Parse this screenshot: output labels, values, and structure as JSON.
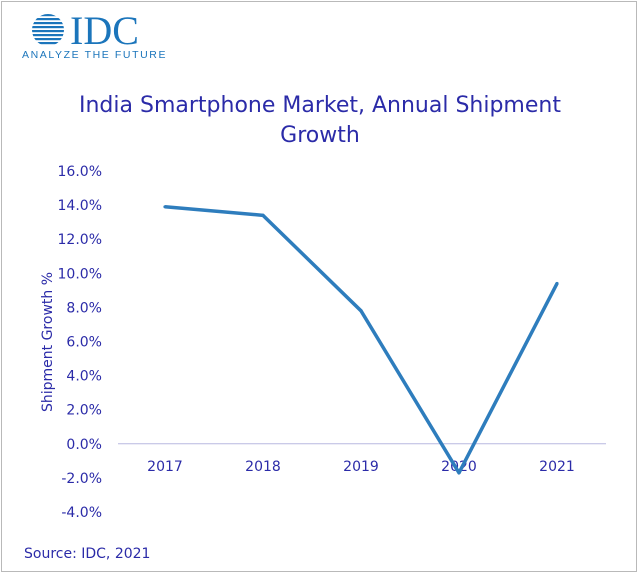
{
  "brand": {
    "name": "IDC",
    "tagline": "ANALYZE THE FUTURE",
    "color": "#1b75bb"
  },
  "source": "Source: IDC, 2021",
  "colors": {
    "text": "#2b2ba8",
    "line": "#2e7dbd",
    "axis": "#b8b8e0"
  },
  "chart_data": {
    "type": "line",
    "title_lines": [
      "India Smartphone Market, Annual Shipment",
      "Growth"
    ],
    "ylabel": "Shipment Growth %",
    "xlabel": "",
    "categories": [
      "2017",
      "2018",
      "2019",
      "2020",
      "2021"
    ],
    "series": [
      {
        "values": [
          13.9,
          13.4,
          7.8,
          -1.7,
          9.4
        ]
      }
    ],
    "ylim": [
      -4,
      16
    ],
    "yticks": [
      16,
      14,
      12,
      10,
      8,
      6,
      4,
      2,
      0,
      -2,
      -4
    ],
    "ytick_labels": [
      "16.0%",
      "14.0%",
      "12.0%",
      "10.0%",
      "8.0%",
      "6.0%",
      "4.0%",
      "2.0%",
      "0.0%",
      "-2.0%",
      "-4.0%"
    ],
    "grid": false,
    "legend": "none"
  }
}
